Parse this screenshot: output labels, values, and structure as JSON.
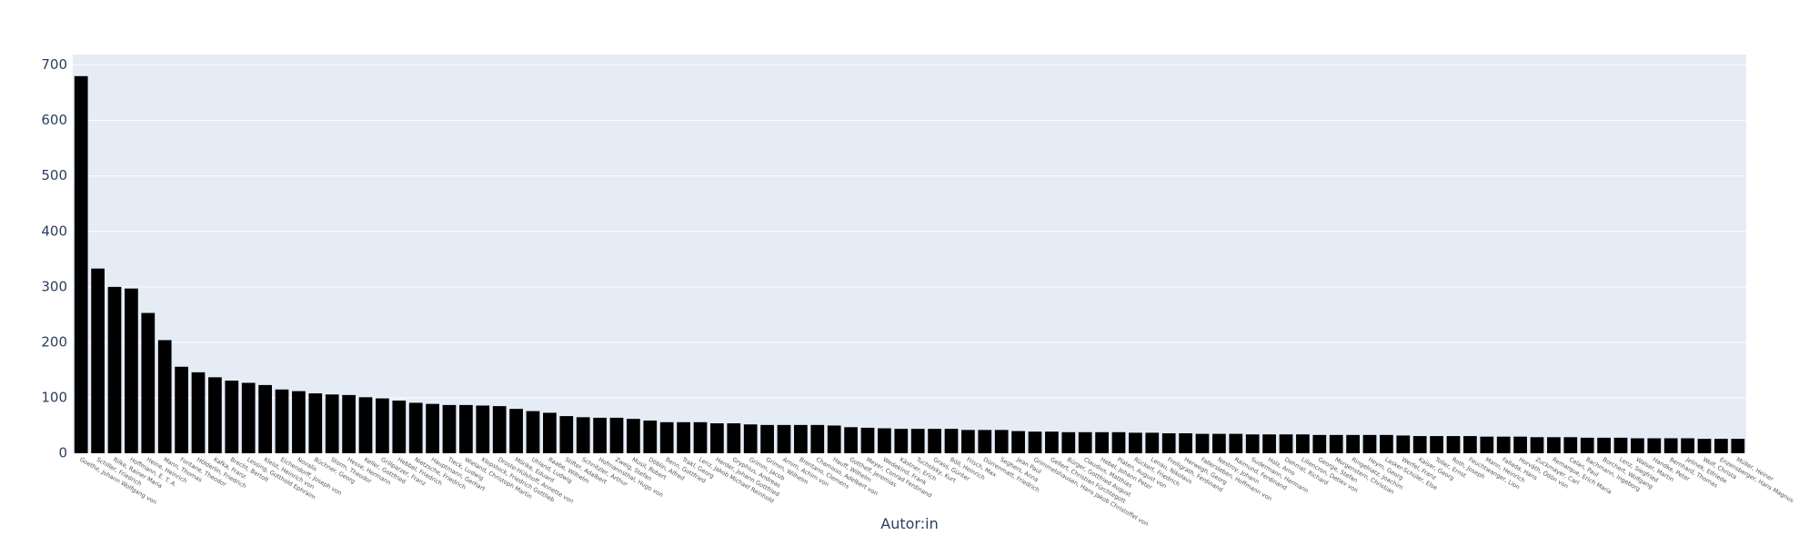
{
  "chart_data": {
    "type": "bar",
    "x_label": "Autor:in",
    "categories": [
      "Goethe, Johann Wolfgang von",
      "Schiller, Friedrich",
      "Rilke, Rainer Maria",
      "Hoffmann, E. T. A.",
      "Heine, Heinrich",
      "Mann, Thomas",
      "Fontane, Theodor",
      "Hölderlin, Friedrich",
      "Kafka, Franz",
      "Brecht, Bertolt",
      "Lessing, Gotthold Ephraim",
      "Kleist, Heinrich von",
      "Eichendorff, Joseph von",
      "Novalis",
      "Büchner, Georg",
      "Storm, Theodor",
      "Hesse, Hermann",
      "Keller, Gottfried",
      "Grillparzer, Franz",
      "Hebbel, Friedrich",
      "Nietzsche, Friedrich",
      "Hauptmann, Gerhart",
      "Tieck, Ludwig",
      "Wieland, Christoph Martin",
      "Klopstock, Friedrich Gottlieb",
      "Droste-Hülshoff, Annette von",
      "Mörike, Eduard",
      "Uhland, Ludwig",
      "Raabe, Wilhelm",
      "Stifter, Adalbert",
      "Schnitzler, Arthur",
      "Hofmannsthal, Hugo von",
      "Zweig, Stefan",
      "Musil, Robert",
      "Döblin, Alfred",
      "Benn, Gottfried",
      "Trakl, Georg",
      "Lenz, Jakob Michael Reinhold",
      "Herder, Johann Gottfried",
      "Gryphius, Andreas",
      "Grimm, Jacob",
      "Grimm, Wilhelm",
      "Arnim, Achim von",
      "Brentano, Clemens",
      "Chamisso, Adelbert von",
      "Hauff, Wilhelm",
      "Gotthelf, Jeremias",
      "Meyer, Conrad Ferdinand",
      "Wedekind, Frank",
      "Kästner, Erich",
      "Tucholsky, Kurt",
      "Grass, Günter",
      "Böll, Heinrich",
      "Frisch, Max",
      "Dürrenmatt, Friedrich",
      "Seghers, Anna",
      "Jean Paul",
      "Grimmelshausen, Hans Jakob Christoffel von",
      "Gellert, Christian Fürchtegott",
      "Bürger, Gottfried August",
      "Claudius, Matthias",
      "Hebel, Johann Peter",
      "Platen, August von",
      "Rückert, Friedrich",
      "Lenau, Nikolaus",
      "Freiligrath, Ferdinand",
      "Herwegh, Georg",
      "Fallersleben, Hoffmann von",
      "Nestroy, Johann",
      "Raimund, Ferdinand",
      "Sudermann, Hermann",
      "Holz, Arno",
      "Dehmel, Richard",
      "Liliencron, Detlev von",
      "George, Stefan",
      "Morgenstern, Christian",
      "Ringelnatz, Joachim",
      "Heym, Georg",
      "Lasker-Schüler, Else",
      "Werfel, Franz",
      "Kaiser, Georg",
      "Toller, Ernst",
      "Roth, Joseph",
      "Feuchtwanger, Lion",
      "Mann, Heinrich",
      "Fallada, Hans",
      "Horváth, Ödön von",
      "Zuckmayer, Carl",
      "Remarque, Erich Maria",
      "Celan, Paul",
      "Bachmann, Ingeborg",
      "Borchert, Wolfgang",
      "Lenz, Siegfried",
      "Walser, Martin",
      "Handke, Peter",
      "Bernhard, Thomas",
      "Jelinek, Elfriede",
      "Wolf, Christa",
      "Enzensberger, Hans Magnus",
      "Müller, Heiner"
    ],
    "values": [
      680,
      333,
      300,
      297,
      253,
      204,
      156,
      146,
      137,
      131,
      127,
      123,
      115,
      112,
      108,
      106,
      105,
      101,
      99,
      95,
      91,
      89,
      87,
      87,
      86,
      85,
      80,
      76,
      73,
      67,
      65,
      64,
      64,
      62,
      59,
      56,
      56,
      56,
      54,
      54,
      52,
      51,
      51,
      51,
      51,
      50,
      47,
      46,
      45,
      44,
      44,
      44,
      44,
      42,
      42,
      42,
      40,
      39,
      39,
      38,
      38,
      38,
      38,
      37,
      37,
      36,
      36,
      35,
      35,
      35,
      34,
      34,
      34,
      34,
      33,
      33,
      33,
      33,
      33,
      32,
      31,
      31,
      31,
      31,
      30,
      30,
      30,
      29,
      29,
      29,
      28,
      28,
      28,
      27,
      27,
      27,
      27,
      26,
      26,
      26
    ],
    "color": "#000000",
    "ylim": [
      0,
      719
    ],
    "yticks": [
      0,
      100,
      200,
      300,
      400,
      500,
      600,
      700
    ],
    "grid": true
  }
}
